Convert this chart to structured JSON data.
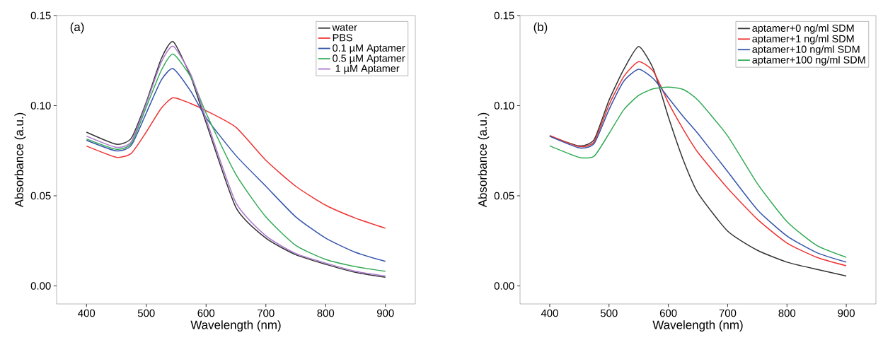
{
  "chart_data": [
    {
      "type": "line",
      "xlabel": "Wavelength (nm)",
      "ylabel": "Absorbance (a.u.)",
      "annotations": [
        "(a)"
      ],
      "x": [
        400,
        450,
        475,
        500,
        525,
        545,
        575,
        600,
        650,
        700,
        750,
        800,
        850,
        900
      ],
      "xlim": [
        350,
        950
      ],
      "xticks": [
        400,
        500,
        600,
        700,
        800,
        900
      ],
      "ylim": [
        -0.01,
        0.15
      ],
      "yticks": [
        {
          "value": 0,
          "label": "0.00"
        },
        {
          "value": 0.05,
          "label": "0.05"
        },
        {
          "value": 0.1,
          "label": "0.10"
        },
        {
          "value": 0.15,
          "label": "0.15"
        }
      ],
      "legend": "top right",
      "series": [
        {
          "name": "water",
          "color": "#333333",
          "values": [
            0.0853,
            0.0786,
            0.082,
            0.102,
            0.126,
            0.1355,
            0.1155,
            0.0906,
            0.0435,
            0.0265,
            0.0173,
            0.012,
            0.0075,
            0.0048
          ]
        },
        {
          "name": "PBS",
          "color": "#ee3333",
          "values": [
            0.0776,
            0.0714,
            0.0736,
            0.0854,
            0.0985,
            0.1044,
            0.1011,
            0.0972,
            0.088,
            0.0697,
            0.0553,
            0.0448,
            0.0376,
            0.032
          ]
        },
        {
          "name": "0.1 µM Aptamer",
          "color": "#3355aa",
          "values": [
            0.0808,
            0.0749,
            0.078,
            0.0959,
            0.1142,
            0.1205,
            0.1077,
            0.0933,
            0.0723,
            0.0553,
            0.0383,
            0.0265,
            0.0186,
            0.0136
          ]
        },
        {
          "name": "0.5 µM Aptamer",
          "color": "#33aa55",
          "values": [
            0.0815,
            0.0758,
            0.079,
            0.0992,
            0.1195,
            0.1286,
            0.1155,
            0.0959,
            0.0618,
            0.0383,
            0.0225,
            0.0147,
            0.0107,
            0.0081
          ]
        },
        {
          "name": "  1  µM Aptamer",
          "color": "#aa77cc",
          "values": [
            0.0831,
            0.0769,
            0.08,
            0.1011,
            0.124,
            0.133,
            0.1169,
            0.0926,
            0.0461,
            0.0278,
            0.018,
            0.0127,
            0.0081,
            0.0055
          ]
        }
      ]
    },
    {
      "type": "line",
      "xlabel": "Wavelength (nm)",
      "ylabel": "Absorbance (a.u.)",
      "annotations": [
        "(b)"
      ],
      "x": [
        400,
        450,
        475,
        500,
        525,
        550,
        575,
        600,
        625,
        650,
        700,
        750,
        800,
        850,
        900
      ],
      "xlim": [
        350,
        950
      ],
      "xticks": [
        400,
        500,
        600,
        700,
        800,
        900
      ],
      "ylim": [
        -0.01,
        0.15
      ],
      "yticks": [
        {
          "value": 0,
          "label": "0.00"
        },
        {
          "value": 0.05,
          "label": "0.05"
        },
        {
          "value": 0.1,
          "label": "0.10"
        },
        {
          "value": 0.15,
          "label": "0.15"
        }
      ],
      "legend": "top right",
      "series": [
        {
          "name": "aptamer+0 ng/ml SDM",
          "color": "#333333",
          "values": [
            0.0832,
            0.0777,
            0.0812,
            0.103,
            0.1202,
            0.1328,
            0.1202,
            0.0938,
            0.07,
            0.0515,
            0.0304,
            0.0198,
            0.0132,
            0.0092,
            0.0055
          ]
        },
        {
          "name": "aptamer+1 ng/ml SDM",
          "color": "#ee3333",
          "values": [
            0.0835,
            0.0773,
            0.08,
            0.1004,
            0.1162,
            0.1244,
            0.1189,
            0.1017,
            0.087,
            0.074,
            0.0542,
            0.037,
            0.0238,
            0.0159,
            0.0112
          ]
        },
        {
          "name": "aptamer+10 ng/ml SDM",
          "color": "#3355aa",
          "values": [
            0.083,
            0.0766,
            0.079,
            0.0978,
            0.1136,
            0.1202,
            0.1149,
            0.1044,
            0.094,
            0.0845,
            0.0634,
            0.0423,
            0.0277,
            0.0185,
            0.0132
          ]
        },
        {
          "name": "aptamer+100 ng/ml SDM",
          "color": "#33aa55",
          "values": [
            0.0777,
            0.0713,
            0.072,
            0.0845,
            0.0978,
            0.1057,
            0.1094,
            0.1103,
            0.109,
            0.103,
            0.0832,
            0.0568,
            0.0357,
            0.0225,
            0.0159
          ]
        }
      ]
    }
  ]
}
